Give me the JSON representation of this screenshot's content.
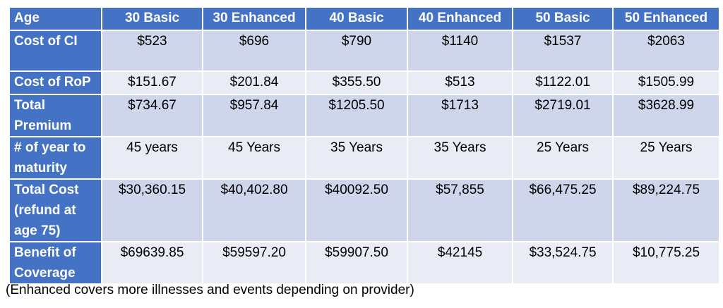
{
  "table": {
    "corner": "Age",
    "columns": [
      "30 Basic",
      "30 Enhanced",
      "40 Basic",
      "40 Enhanced",
      "50 Basic",
      "50 Enhanced"
    ],
    "rows": [
      {
        "label": "Cost of CI",
        "values": [
          "$523",
          "$696",
          "$790",
          "$1140",
          "$1537",
          "$2063"
        ]
      },
      {
        "label": "Cost of RoP",
        "values": [
          "$151.67",
          "$201.84",
          "$355.50",
          "$513",
          "$1122.01",
          "$1505.99"
        ]
      },
      {
        "label": "Total Premium",
        "values": [
          "$734.67",
          "$957.84",
          "$1205.50",
          "$1713",
          "$2719.01",
          "$3628.99"
        ]
      },
      {
        "label": "# of year to maturity",
        "values": [
          "45 years",
          "45 Years",
          "35 Years",
          "35 Years",
          "25 Years",
          "25 Years"
        ]
      },
      {
        "label": "Total Cost (refund at age 75)",
        "values": [
          "$30,360.15",
          "$40,402.80",
          "$40092.50",
          "$57,855",
          "$66,475.25",
          "$89,224.75"
        ]
      },
      {
        "label": "Benefit of Coverage",
        "values": [
          "$69639.85",
          "$59597.20",
          "$59907.50",
          "$42145",
          "$33,524.75",
          "$10,775.25"
        ]
      }
    ],
    "colors": {
      "header_bg": "#4472c4",
      "header_text": "#ffffff",
      "band_dark": "#cfd5ea",
      "band_light": "#e9ebf5"
    }
  },
  "footnote": "(Enhanced covers more illnesses and events depending on provider)"
}
